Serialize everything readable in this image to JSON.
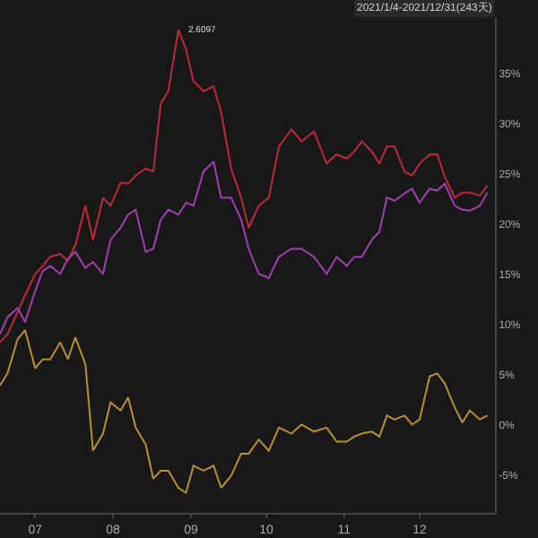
{
  "chart_data": {
    "type": "line",
    "x": [
      "2021-06-17",
      "2021-06-20",
      "2021-06-24",
      "2021-06-27",
      "2021-07-01",
      "2021-07-04",
      "2021-07-07",
      "2021-07-11",
      "2021-07-14",
      "2021-07-17",
      "2021-07-21",
      "2021-07-24",
      "2021-07-28",
      "2021-07-31",
      "2021-08-04",
      "2021-08-07",
      "2021-08-10",
      "2021-08-14",
      "2021-08-17",
      "2021-08-20",
      "2021-08-23",
      "2021-08-27",
      "2021-08-30",
      "2021-09-02",
      "2021-09-06",
      "2021-09-10",
      "2021-09-13",
      "2021-09-17",
      "2021-09-21",
      "2021-09-24",
      "2021-09-28",
      "2021-10-02",
      "2021-10-06",
      "2021-10-11",
      "2021-10-15",
      "2021-10-20",
      "2021-10-25",
      "2021-10-29",
      "2021-11-02",
      "2021-11-05",
      "2021-11-08",
      "2021-11-12",
      "2021-11-15",
      "2021-11-18",
      "2021-11-21",
      "2021-11-25",
      "2021-11-28",
      "2021-12-01",
      "2021-12-05",
      "2021-12-08",
      "2021-12-11",
      "2021-12-15",
      "2021-12-18",
      "2021-12-21",
      "2021-12-25",
      "2021-12-28"
    ],
    "series": [
      {
        "color": "#c0283c",
        "values": [
          8.2,
          9.0,
          11.2,
          12.9,
          15.0,
          15.8,
          16.7,
          17.0,
          16.3,
          17.9,
          21.8,
          18.4,
          22.6,
          21.8,
          24.1,
          24.0,
          24.8,
          25.5,
          25.2,
          32.0,
          33.2,
          39.3,
          37.4,
          34.2,
          33.2,
          33.7,
          31.1,
          25.5,
          22.6,
          19.6,
          21.8,
          22.6,
          27.7,
          29.4,
          28.2,
          29.2,
          26.0,
          26.9,
          26.5,
          27.2,
          28.2,
          27.2,
          26.0,
          27.7,
          27.7,
          25.2,
          24.8,
          26.0,
          26.9,
          26.9,
          24.7,
          22.6,
          23.1,
          23.1,
          22.8,
          23.8
        ]
      },
      {
        "color": "#a040b0",
        "values": [
          9.0,
          10.7,
          11.6,
          10.2,
          13.3,
          15.3,
          15.8,
          15.0,
          16.5,
          17.2,
          15.6,
          16.2,
          15.0,
          18.4,
          19.6,
          20.9,
          21.4,
          17.2,
          17.5,
          20.4,
          21.4,
          20.9,
          22.1,
          21.8,
          25.2,
          26.2,
          22.6,
          22.6,
          20.4,
          17.5,
          15.0,
          14.6,
          16.7,
          17.5,
          17.5,
          16.7,
          15.0,
          16.7,
          15.8,
          16.7,
          16.7,
          18.4,
          19.2,
          22.6,
          22.3,
          23.0,
          23.5,
          22.1,
          23.5,
          23.3,
          24.0,
          21.8,
          21.4,
          21.3,
          21.8,
          23.1
        ]
      },
      {
        "color": "#b8902c",
        "values": [
          3.9,
          5.1,
          8.5,
          9.4,
          5.6,
          6.5,
          6.5,
          8.2,
          6.5,
          8.7,
          6.0,
          -2.6,
          -0.9,
          2.2,
          1.4,
          2.7,
          -0.3,
          -2.0,
          -5.4,
          -4.6,
          -4.6,
          -6.3,
          -6.8,
          -4.1,
          -4.6,
          -4.1,
          -6.3,
          -5.1,
          -2.9,
          -2.9,
          -1.5,
          -2.6,
          -0.3,
          -0.9,
          0,
          -0.7,
          -0.3,
          -1.7,
          -1.7,
          -1.2,
          -0.9,
          -0.7,
          -1.2,
          0.9,
          0.5,
          0.9,
          0,
          0.5,
          4.8,
          5.1,
          4.1,
          1.7,
          0.2,
          1.4,
          0.5,
          0.9
        ]
      }
    ],
    "xlim": [
      "2021-06-17",
      "2021-12-31"
    ],
    "xticks": [
      {
        "value": "2021-07-01",
        "label": "07"
      },
      {
        "value": "2021-08-01",
        "label": "08"
      },
      {
        "value": "2021-09-01",
        "label": "09"
      },
      {
        "value": "2021-10-01",
        "label": "10"
      },
      {
        "value": "2021-11-01",
        "label": "11"
      },
      {
        "value": "2021-12-01",
        "label": "12"
      }
    ],
    "ylim": [
      -8.8,
      40.5
    ],
    "yticks": [
      {
        "value": -5,
        "label": "-5%"
      },
      {
        "value": 0,
        "label": "0%"
      },
      {
        "value": 5,
        "label": "5%"
      },
      {
        "value": 10,
        "label": "10%"
      },
      {
        "value": 15,
        "label": "15%"
      },
      {
        "value": 20,
        "label": "20%"
      },
      {
        "value": 25,
        "label": "25%"
      },
      {
        "value": 30,
        "label": "30%"
      },
      {
        "value": 35,
        "label": "35%"
      }
    ],
    "annotations": [
      "2021/1/4-2021/12/31(243天)",
      {
        "text": "2.6097",
        "x": "2021-08-27",
        "y": 39.3
      }
    ],
    "marker": "none",
    "line_style": "solid"
  }
}
